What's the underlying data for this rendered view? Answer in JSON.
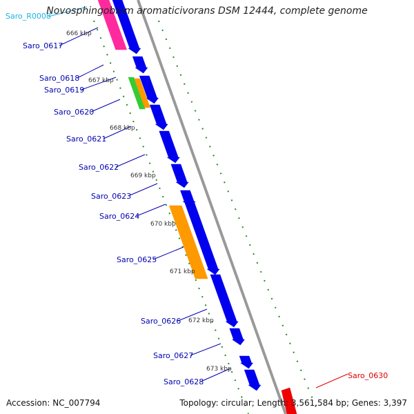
{
  "map": {
    "title": "Novosphingobium aromaticivorans DSM 12444, complete genome",
    "accession_text": "Accession: NC_007794",
    "summary_text": "Topology: circular; Length: 3,561,584 bp; Genes: 3,397"
  },
  "scale_ticks": [
    "666 kbp",
    "667 kbp",
    "668 kbp",
    "669 kbp",
    "670 kbp",
    "671 kbp",
    "672 kbp",
    "673 kbp"
  ],
  "gene_labels": [
    {
      "name": "Saro_R0008",
      "color": "#1ab3e6"
    },
    {
      "name": "Saro_0617",
      "color": "#0000b0"
    },
    {
      "name": "Saro_0618",
      "color": "#0000b0"
    },
    {
      "name": "Saro_0619",
      "color": "#0000b0"
    },
    {
      "name": "Saro_0620",
      "color": "#0000b0"
    },
    {
      "name": "Saro_0621",
      "color": "#0000b0"
    },
    {
      "name": "Saro_0622",
      "color": "#0000b0"
    },
    {
      "name": "Saro_0623",
      "color": "#0000b0"
    },
    {
      "name": "Saro_0624",
      "color": "#0000b0"
    },
    {
      "name": "Saro_0625",
      "color": "#0000b0"
    },
    {
      "name": "Saro_0626",
      "color": "#0000b0"
    },
    {
      "name": "Saro_0627",
      "color": "#0000b0"
    },
    {
      "name": "Saro_0628",
      "color": "#0000b0"
    },
    {
      "name": "Saro_0630",
      "color": "#dd0000"
    }
  ],
  "colors": {
    "forward_cds": "#0000ee",
    "rrna": "#ff2a9d",
    "orange_feature": "#ff9900",
    "green_feature": "#33cc33",
    "red_feature": "#ee0000",
    "backbone": "#999999",
    "gc_dots": "#228822"
  }
}
